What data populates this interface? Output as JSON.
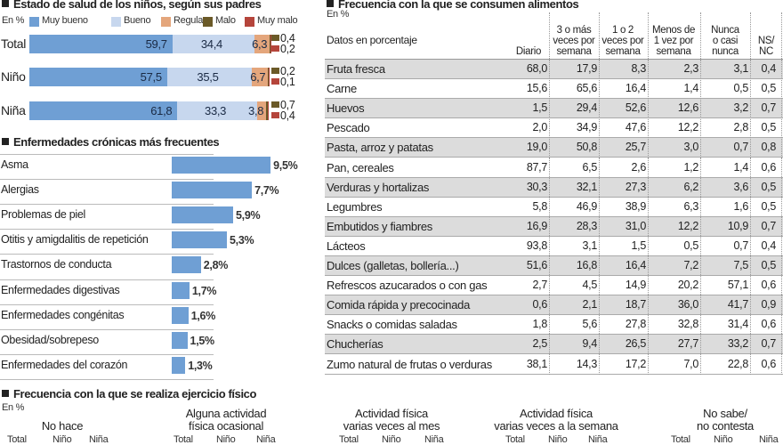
{
  "chart_data": [
    {
      "type": "bar",
      "stacked": true,
      "orientation": "horizontal",
      "title": "Estado de salud de los niños, según sus padres",
      "unit_note": "En %",
      "legend_position": "top",
      "categories": [
        "Total",
        "Niño",
        "Niña"
      ],
      "series": [
        {
          "name": "Muy bueno",
          "color": "#6f9fd4",
          "values": [
            59.7,
            57.5,
            61.8
          ],
          "labels": [
            "59,7",
            "57,5",
            "61,8"
          ]
        },
        {
          "name": "Bueno",
          "color": "#c7d7ee",
          "values": [
            34.4,
            35.5,
            33.3
          ],
          "labels": [
            "34,4",
            "35,5",
            "33,3"
          ]
        },
        {
          "name": "Regular",
          "color": "#e4a67c",
          "values": [
            6.3,
            6.7,
            3.8
          ],
          "labels": [
            "6,3",
            "6,7",
            "3,8"
          ]
        },
        {
          "name": "Malo",
          "color": "#6b5a28",
          "values": [
            0.4,
            0.2,
            0.7
          ],
          "labels": [
            "0,4",
            "0,2",
            "0,7"
          ]
        },
        {
          "name": "Muy malo",
          "color": "#b5453b",
          "values": [
            0.2,
            0.1,
            0.4
          ],
          "labels": [
            "0,2",
            "0,1",
            "0,4"
          ]
        }
      ]
    },
    {
      "type": "bar",
      "orientation": "horizontal",
      "title": "Enfermedades crónicas más frecuentes",
      "color": "#6f9fd4",
      "categories": [
        "Asma",
        "Alergias",
        "Problemas de piel",
        "Otitis y amigdalitis de repetición",
        "Trastornos de conducta",
        "Enfermedades digestivas",
        "Enfermedades congénitas",
        "Obesidad/sobrepeso",
        "Enfermedades del corazón"
      ],
      "values": [
        9.5,
        7.7,
        5.9,
        5.3,
        2.8,
        1.7,
        1.6,
        1.5,
        1.3
      ],
      "labels": [
        "9,5%",
        "7,7%",
        "5,9%",
        "5,3%",
        "2,8%",
        "1,7%",
        "1,6%",
        "1,5%",
        "1,3%"
      ]
    },
    {
      "type": "table",
      "title": "Frecuencia con la que se consumen alimentos",
      "unit_note": "En %",
      "row_header": "Datos en porcentaje",
      "columns": [
        "Diario",
        "3 o más veces por semana",
        "1 o 2 veces por semana",
        "Menos de 1 vez por semana",
        "Nunca o casi nunca",
        "NS/ NC"
      ],
      "column_lines": [
        [
          "Diario"
        ],
        [
          "3 o más",
          "veces por",
          "semana"
        ],
        [
          "1 o 2",
          "veces por",
          "semana"
        ],
        [
          "Menos de",
          "1 vez por",
          "semana"
        ],
        [
          "Nunca",
          "o casi",
          "nunca"
        ],
        [
          "NS/",
          "NC"
        ]
      ],
      "stripe_color": "#dcdcdc",
      "rows": [
        {
          "label": "Fruta fresca",
          "values": [
            "68,0",
            "17,9",
            "8,3",
            "2,3",
            "3,1",
            "0,4"
          ]
        },
        {
          "label": "Carne",
          "values": [
            "15,6",
            "65,6",
            "16,4",
            "1,4",
            "0,5",
            "0,5"
          ]
        },
        {
          "label": "Huevos",
          "values": [
            "1,5",
            "29,4",
            "52,6",
            "12,6",
            "3,2",
            "0,7"
          ]
        },
        {
          "label": "Pescado",
          "values": [
            "2,0",
            "34,9",
            "47,6",
            "12,2",
            "2,8",
            "0,5"
          ]
        },
        {
          "label": "Pasta, arroz y patatas",
          "values": [
            "19,0",
            "50,8",
            "25,7",
            "3,0",
            "0,7",
            "0,8"
          ]
        },
        {
          "label": "Pan, cereales",
          "values": [
            "87,7",
            "6,5",
            "2,6",
            "1,2",
            "1,4",
            "0,6"
          ]
        },
        {
          "label": "Verduras y hortalizas",
          "values": [
            "30,3",
            "32,1",
            "27,3",
            "6,2",
            "3,6",
            "0,5"
          ]
        },
        {
          "label": "Legumbres",
          "values": [
            "5,8",
            "46,9",
            "38,9",
            "6,3",
            "1,6",
            "0,5"
          ]
        },
        {
          "label": "Embutidos y fiambres",
          "values": [
            "16,9",
            "28,3",
            "31,0",
            "12,2",
            "10,9",
            "0,7"
          ]
        },
        {
          "label": "Lácteos",
          "values": [
            "93,8",
            "3,1",
            "1,5",
            "0,5",
            "0,7",
            "0,4"
          ]
        },
        {
          "label": "Dulces (galletas, bollería...)",
          "values": [
            "51,6",
            "16,8",
            "16,4",
            "7,2",
            "7,5",
            "0,5"
          ]
        },
        {
          "label": "Refrescos azucarados o con gas",
          "values": [
            "2,7",
            "4,5",
            "14,9",
            "20,2",
            "57,1",
            "0,6"
          ]
        },
        {
          "label": "Comida rápida y precocinada",
          "values": [
            "0,6",
            "2,1",
            "18,7",
            "36,0",
            "41,7",
            "0,9"
          ]
        },
        {
          "label": "Snacks o comidas saladas",
          "values": [
            "1,8",
            "5,6",
            "27,8",
            "32,8",
            "31,4",
            "0,6"
          ]
        },
        {
          "label": "Chucherías",
          "values": [
            "2,5",
            "9,4",
            "26,5",
            "27,7",
            "33,2",
            "0,7"
          ]
        },
        {
          "label": "Zumo natural de frutas o verduras",
          "values": [
            "38,1",
            "14,3",
            "17,2",
            "7,0",
            "22,8",
            "0,6"
          ]
        }
      ]
    },
    {
      "type": "bar",
      "title": "Frecuencia con la que se realiza ejercicio físico",
      "unit_note": "En %",
      "groups": [
        {
          "lines": [
            "No hace"
          ],
          "subcategories": [
            "Total",
            "Niño",
            "Niña"
          ]
        },
        {
          "lines": [
            "Alguna actividad",
            "física ocasional"
          ],
          "subcategories": [
            "Total",
            "Niño",
            "Niña"
          ]
        },
        {
          "lines": [
            "Actividad física",
            "varias veces al mes"
          ],
          "subcategories": [
            "Total",
            "Niño",
            "Niña"
          ]
        },
        {
          "lines": [
            "Actividad física",
            "varias veces a la semana"
          ],
          "subcategories": [
            "Total",
            "Niño",
            "Niña"
          ]
        },
        {
          "lines": [
            "No sabe/",
            "no contesta"
          ],
          "subcategories": [
            "Total",
            "Niño",
            "Niña"
          ]
        }
      ]
    }
  ]
}
